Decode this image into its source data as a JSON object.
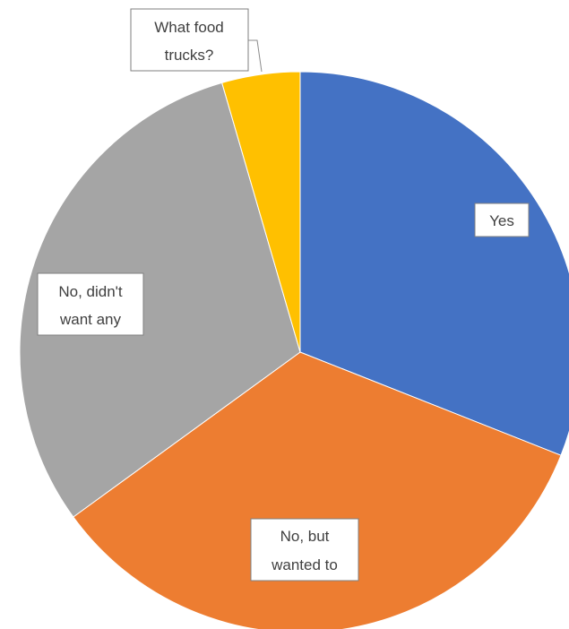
{
  "chart_data": {
    "type": "pie",
    "title": "",
    "start_angle_deg": 0,
    "direction": "clockwise",
    "legend": "none",
    "slices": [
      {
        "label": "Yes",
        "value": 31,
        "color": "#4472C4"
      },
      {
        "label": "No, but wanted to",
        "value": 34,
        "color": "#ED7D31"
      },
      {
        "label": "No, didn't want any",
        "value": 30.5,
        "color": "#A5A5A5"
      },
      {
        "label": "What food trucks?",
        "value": 4.5,
        "color": "#FFC000"
      }
    ]
  },
  "labels": {
    "yes": "Yes",
    "no_but_wanted_line1": "No, but",
    "no_but_wanted_line2": "wanted to",
    "no_didnt_want_line1": "No, didn't",
    "no_didnt_want_line2": "want any",
    "what_food_trucks_line1": "What food",
    "what_food_trucks_line2": "trucks?"
  }
}
